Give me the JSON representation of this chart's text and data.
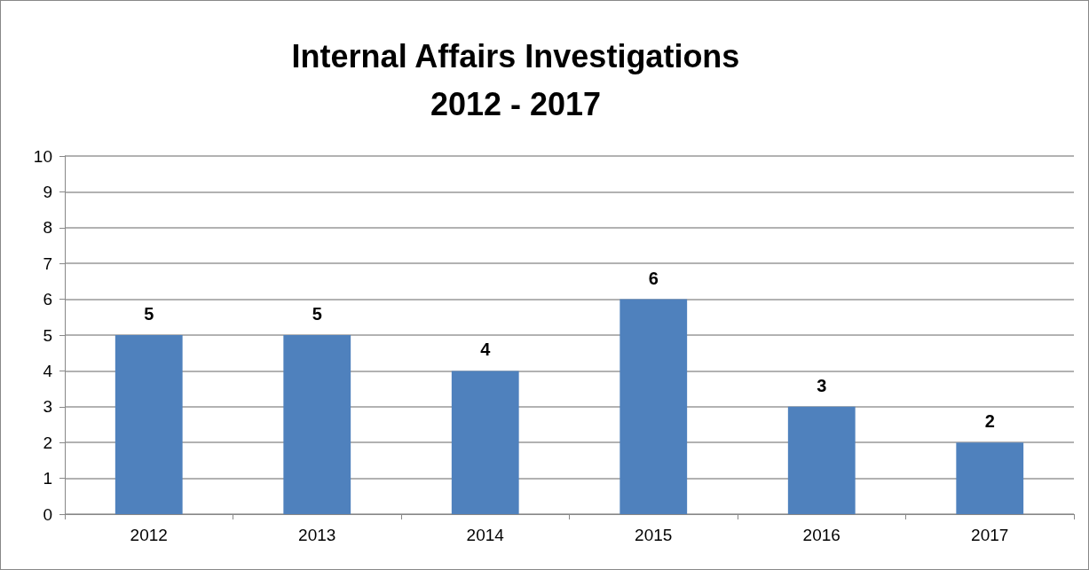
{
  "chart_data": {
    "type": "bar",
    "title": "Internal Affairs Investigations\n2012 - 2017",
    "categories": [
      "2012",
      "2013",
      "2014",
      "2015",
      "2016",
      "2017"
    ],
    "values": [
      5,
      5,
      4,
      6,
      3,
      2
    ],
    "color": "#4f81bd",
    "ylim": [
      0,
      10
    ],
    "yticks": [
      0,
      1,
      2,
      3,
      4,
      5,
      6,
      7,
      8,
      9,
      10
    ],
    "grid": "y",
    "data_labels": true
  }
}
